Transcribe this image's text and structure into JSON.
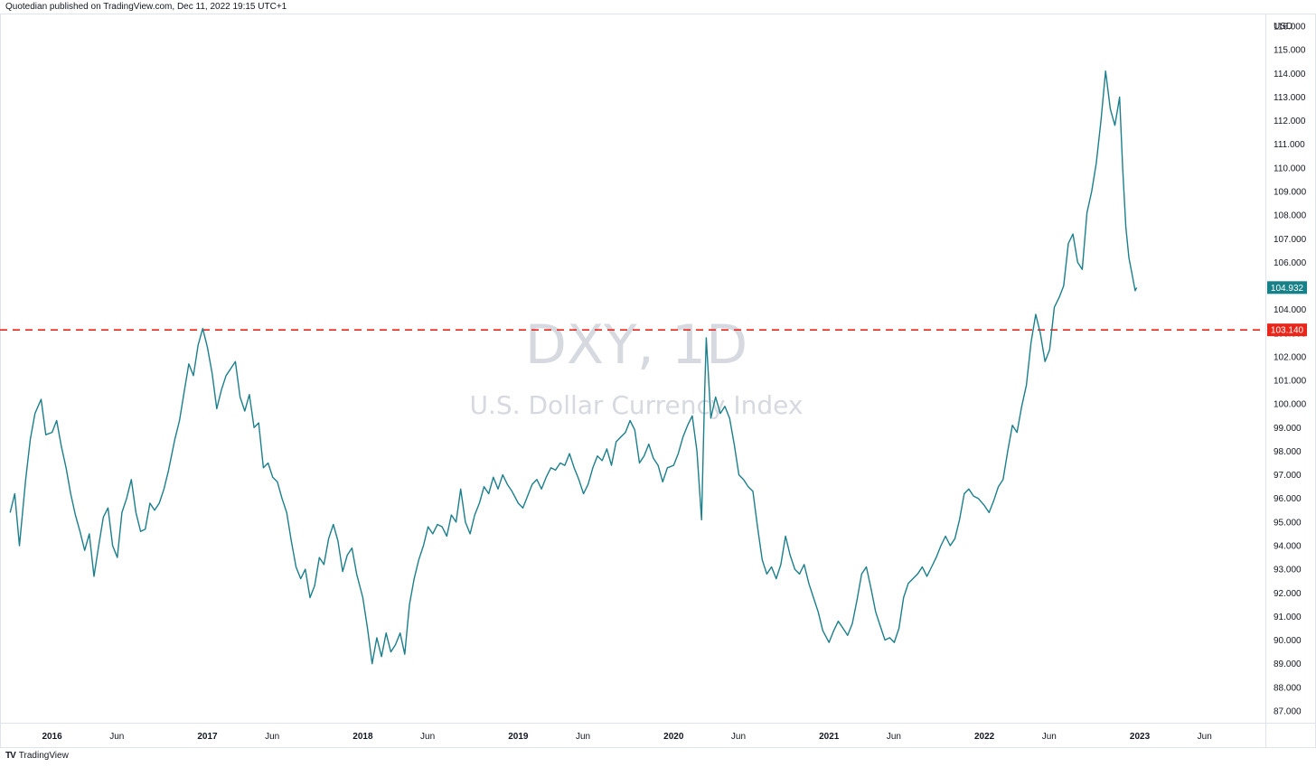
{
  "attribution": "Quotedian published on TradingView.com, Dec 11, 2022 19:15 UTC+1",
  "watermark": {
    "symbol": "DXY, 1D",
    "name": "U.S. Dollar Currency Index"
  },
  "footer": {
    "logo_text": "TradingView",
    "logo_mark": "TV"
  },
  "colors": {
    "line": "#1b7f8c",
    "level": "#e8271c",
    "badge_last": "#17818a",
    "badge_level": "#e8271c"
  },
  "chart_data": {
    "type": "line",
    "title": "DXY, 1D",
    "subtitle": "U.S. Dollar Currency Index",
    "currency_label": "USD",
    "ylim": [
      86.5,
      116.5
    ],
    "yticks": [
      87,
      88,
      89,
      90,
      91,
      92,
      93,
      94,
      95,
      96,
      97,
      98,
      99,
      100,
      101,
      102,
      103,
      104,
      105,
      106,
      107,
      108,
      109,
      110,
      111,
      112,
      113,
      114,
      115,
      116
    ],
    "xlim": [
      2015.7,
      2023.75
    ],
    "xticks": [
      {
        "label": "2016",
        "x": 2016.0,
        "year": true
      },
      {
        "label": "Jun",
        "x": 2016.417,
        "year": false
      },
      {
        "label": "2017",
        "x": 2017.0,
        "year": true
      },
      {
        "label": "Jun",
        "x": 2017.417,
        "year": false
      },
      {
        "label": "2018",
        "x": 2018.0,
        "year": true
      },
      {
        "label": "Jun",
        "x": 2018.417,
        "year": false
      },
      {
        "label": "2019",
        "x": 2019.0,
        "year": true
      },
      {
        "label": "Jun",
        "x": 2019.417,
        "year": false
      },
      {
        "label": "2020",
        "x": 2020.0,
        "year": true
      },
      {
        "label": "Jun",
        "x": 2020.417,
        "year": false
      },
      {
        "label": "2021",
        "x": 2021.0,
        "year": true
      },
      {
        "label": "Jun",
        "x": 2021.417,
        "year": false
      },
      {
        "label": "2022",
        "x": 2022.0,
        "year": true
      },
      {
        "label": "Jun",
        "x": 2022.417,
        "year": false
      },
      {
        "label": "2023",
        "x": 2023.0,
        "year": true
      },
      {
        "label": "Jun",
        "x": 2023.417,
        "year": false
      }
    ],
    "series": [
      {
        "name": "DXY",
        "points": [
          [
            2015.73,
            95.4
          ],
          [
            2015.76,
            96.2
          ],
          [
            2015.79,
            94.0
          ],
          [
            2015.83,
            96.8
          ],
          [
            2015.86,
            98.5
          ],
          [
            2015.89,
            99.6
          ],
          [
            2015.93,
            100.2
          ],
          [
            2015.96,
            98.7
          ],
          [
            2016.0,
            98.8
          ],
          [
            2016.03,
            99.3
          ],
          [
            2016.06,
            98.2
          ],
          [
            2016.09,
            97.3
          ],
          [
            2016.12,
            96.2
          ],
          [
            2016.15,
            95.3
          ],
          [
            2016.18,
            94.6
          ],
          [
            2016.21,
            93.8
          ],
          [
            2016.24,
            94.5
          ],
          [
            2016.27,
            92.7
          ],
          [
            2016.3,
            94.0
          ],
          [
            2016.33,
            95.2
          ],
          [
            2016.36,
            95.6
          ],
          [
            2016.39,
            94.0
          ],
          [
            2016.42,
            93.5
          ],
          [
            2016.45,
            95.4
          ],
          [
            2016.48,
            96.0
          ],
          [
            2016.51,
            96.8
          ],
          [
            2016.54,
            95.4
          ],
          [
            2016.57,
            94.6
          ],
          [
            2016.6,
            94.7
          ],
          [
            2016.63,
            95.8
          ],
          [
            2016.66,
            95.5
          ],
          [
            2016.69,
            95.8
          ],
          [
            2016.72,
            96.4
          ],
          [
            2016.75,
            97.2
          ],
          [
            2016.79,
            98.5
          ],
          [
            2016.82,
            99.3
          ],
          [
            2016.85,
            100.5
          ],
          [
            2016.88,
            101.7
          ],
          [
            2016.91,
            101.2
          ],
          [
            2016.94,
            102.5
          ],
          [
            2016.97,
            103.2
          ],
          [
            2017.0,
            102.4
          ],
          [
            2017.03,
            101.3
          ],
          [
            2017.06,
            99.8
          ],
          [
            2017.09,
            100.6
          ],
          [
            2017.12,
            101.2
          ],
          [
            2017.15,
            101.5
          ],
          [
            2017.18,
            101.8
          ],
          [
            2017.21,
            100.3
          ],
          [
            2017.24,
            99.7
          ],
          [
            2017.27,
            100.4
          ],
          [
            2017.3,
            99.0
          ],
          [
            2017.33,
            99.2
          ],
          [
            2017.36,
            97.3
          ],
          [
            2017.39,
            97.5
          ],
          [
            2017.42,
            96.9
          ],
          [
            2017.45,
            96.7
          ],
          [
            2017.48,
            96.0
          ],
          [
            2017.51,
            95.4
          ],
          [
            2017.54,
            94.2
          ],
          [
            2017.57,
            93.1
          ],
          [
            2017.6,
            92.6
          ],
          [
            2017.63,
            93.0
          ],
          [
            2017.66,
            91.8
          ],
          [
            2017.69,
            92.3
          ],
          [
            2017.72,
            93.5
          ],
          [
            2017.75,
            93.2
          ],
          [
            2017.78,
            94.3
          ],
          [
            2017.81,
            94.9
          ],
          [
            2017.84,
            94.2
          ],
          [
            2017.87,
            92.9
          ],
          [
            2017.9,
            93.6
          ],
          [
            2017.93,
            93.9
          ],
          [
            2017.96,
            92.8
          ],
          [
            2018.0,
            91.8
          ],
          [
            2018.03,
            90.5
          ],
          [
            2018.06,
            89.0
          ],
          [
            2018.09,
            90.1
          ],
          [
            2018.12,
            89.3
          ],
          [
            2018.15,
            90.3
          ],
          [
            2018.18,
            89.5
          ],
          [
            2018.21,
            89.8
          ],
          [
            2018.24,
            90.3
          ],
          [
            2018.27,
            89.4
          ],
          [
            2018.3,
            91.5
          ],
          [
            2018.33,
            92.6
          ],
          [
            2018.36,
            93.4
          ],
          [
            2018.39,
            94.0
          ],
          [
            2018.42,
            94.8
          ],
          [
            2018.45,
            94.5
          ],
          [
            2018.48,
            94.9
          ],
          [
            2018.51,
            94.8
          ],
          [
            2018.54,
            94.4
          ],
          [
            2018.57,
            95.3
          ],
          [
            2018.6,
            95.0
          ],
          [
            2018.63,
            96.4
          ],
          [
            2018.66,
            95.0
          ],
          [
            2018.69,
            94.5
          ],
          [
            2018.72,
            95.3
          ],
          [
            2018.75,
            95.8
          ],
          [
            2018.78,
            96.5
          ],
          [
            2018.81,
            96.2
          ],
          [
            2018.84,
            96.9
          ],
          [
            2018.87,
            96.4
          ],
          [
            2018.9,
            97.0
          ],
          [
            2018.93,
            96.6
          ],
          [
            2018.96,
            96.3
          ],
          [
            2019.0,
            95.8
          ],
          [
            2019.03,
            95.6
          ],
          [
            2019.06,
            96.1
          ],
          [
            2019.09,
            96.6
          ],
          [
            2019.12,
            96.8
          ],
          [
            2019.15,
            96.4
          ],
          [
            2019.18,
            96.9
          ],
          [
            2019.21,
            97.3
          ],
          [
            2019.24,
            97.2
          ],
          [
            2019.27,
            97.5
          ],
          [
            2019.3,
            97.4
          ],
          [
            2019.33,
            97.9
          ],
          [
            2019.36,
            97.3
          ],
          [
            2019.39,
            96.8
          ],
          [
            2019.42,
            96.2
          ],
          [
            2019.45,
            96.6
          ],
          [
            2019.48,
            97.3
          ],
          [
            2019.51,
            97.8
          ],
          [
            2019.54,
            97.6
          ],
          [
            2019.57,
            98.1
          ],
          [
            2019.6,
            97.4
          ],
          [
            2019.63,
            98.4
          ],
          [
            2019.66,
            98.6
          ],
          [
            2019.69,
            98.8
          ],
          [
            2019.72,
            99.3
          ],
          [
            2019.75,
            98.9
          ],
          [
            2019.78,
            97.5
          ],
          [
            2019.81,
            97.8
          ],
          [
            2019.84,
            98.3
          ],
          [
            2019.87,
            97.7
          ],
          [
            2019.9,
            97.4
          ],
          [
            2019.93,
            96.7
          ],
          [
            2019.96,
            97.3
          ],
          [
            2020.0,
            97.4
          ],
          [
            2020.03,
            97.9
          ],
          [
            2020.06,
            98.6
          ],
          [
            2020.09,
            99.1
          ],
          [
            2020.12,
            99.5
          ],
          [
            2020.15,
            98.0
          ],
          [
            2020.18,
            95.1
          ],
          [
            2020.2,
            100.6
          ],
          [
            2020.21,
            102.8
          ],
          [
            2020.24,
            99.4
          ],
          [
            2020.27,
            100.3
          ],
          [
            2020.3,
            99.6
          ],
          [
            2020.33,
            99.9
          ],
          [
            2020.36,
            99.4
          ],
          [
            2020.39,
            98.3
          ],
          [
            2020.42,
            97.0
          ],
          [
            2020.45,
            96.8
          ],
          [
            2020.48,
            96.5
          ],
          [
            2020.51,
            96.3
          ],
          [
            2020.54,
            94.8
          ],
          [
            2020.57,
            93.4
          ],
          [
            2020.6,
            92.8
          ],
          [
            2020.63,
            93.1
          ],
          [
            2020.66,
            92.6
          ],
          [
            2020.69,
            93.2
          ],
          [
            2020.72,
            94.4
          ],
          [
            2020.75,
            93.6
          ],
          [
            2020.78,
            93.0
          ],
          [
            2020.81,
            92.8
          ],
          [
            2020.84,
            93.2
          ],
          [
            2020.87,
            92.4
          ],
          [
            2020.9,
            91.8
          ],
          [
            2020.93,
            91.2
          ],
          [
            2020.96,
            90.4
          ],
          [
            2021.0,
            89.9
          ],
          [
            2021.03,
            90.4
          ],
          [
            2021.06,
            90.8
          ],
          [
            2021.09,
            90.5
          ],
          [
            2021.12,
            90.2
          ],
          [
            2021.15,
            90.7
          ],
          [
            2021.18,
            91.7
          ],
          [
            2021.21,
            92.8
          ],
          [
            2021.24,
            93.1
          ],
          [
            2021.27,
            92.2
          ],
          [
            2021.3,
            91.2
          ],
          [
            2021.33,
            90.6
          ],
          [
            2021.36,
            90.0
          ],
          [
            2021.39,
            90.1
          ],
          [
            2021.42,
            89.9
          ],
          [
            2021.45,
            90.5
          ],
          [
            2021.48,
            91.8
          ],
          [
            2021.51,
            92.4
          ],
          [
            2021.54,
            92.6
          ],
          [
            2021.57,
            92.8
          ],
          [
            2021.6,
            93.1
          ],
          [
            2021.63,
            92.7
          ],
          [
            2021.66,
            93.1
          ],
          [
            2021.69,
            93.5
          ],
          [
            2021.72,
            94.0
          ],
          [
            2021.75,
            94.4
          ],
          [
            2021.78,
            94.0
          ],
          [
            2021.81,
            94.3
          ],
          [
            2021.84,
            95.1
          ],
          [
            2021.87,
            96.2
          ],
          [
            2021.9,
            96.4
          ],
          [
            2021.93,
            96.1
          ],
          [
            2021.96,
            96.0
          ],
          [
            2022.0,
            95.7
          ],
          [
            2022.03,
            95.4
          ],
          [
            2022.06,
            95.9
          ],
          [
            2022.09,
            96.5
          ],
          [
            2022.12,
            96.8
          ],
          [
            2022.15,
            98.0
          ],
          [
            2022.18,
            99.1
          ],
          [
            2022.21,
            98.8
          ],
          [
            2022.24,
            99.9
          ],
          [
            2022.27,
            100.8
          ],
          [
            2022.3,
            102.6
          ],
          [
            2022.33,
            103.8
          ],
          [
            2022.36,
            103.0
          ],
          [
            2022.39,
            101.8
          ],
          [
            2022.42,
            102.3
          ],
          [
            2022.45,
            104.1
          ],
          [
            2022.48,
            104.5
          ],
          [
            2022.51,
            105.0
          ],
          [
            2022.54,
            106.8
          ],
          [
            2022.57,
            107.2
          ],
          [
            2022.6,
            106.0
          ],
          [
            2022.63,
            105.7
          ],
          [
            2022.66,
            108.1
          ],
          [
            2022.69,
            109.0
          ],
          [
            2022.72,
            110.2
          ],
          [
            2022.75,
            112.0
          ],
          [
            2022.78,
            114.1
          ],
          [
            2022.81,
            112.5
          ],
          [
            2022.84,
            111.8
          ],
          [
            2022.87,
            113.0
          ],
          [
            2022.89,
            110.0
          ],
          [
            2022.91,
            107.5
          ],
          [
            2022.93,
            106.2
          ],
          [
            2022.95,
            105.5
          ],
          [
            2022.97,
            104.8
          ],
          [
            2022.98,
            104.932
          ]
        ]
      }
    ],
    "horizontal_line": {
      "value": 103.14,
      "label": "103.140"
    },
    "last_value": {
      "value": 104.932,
      "label": "104.932"
    }
  }
}
